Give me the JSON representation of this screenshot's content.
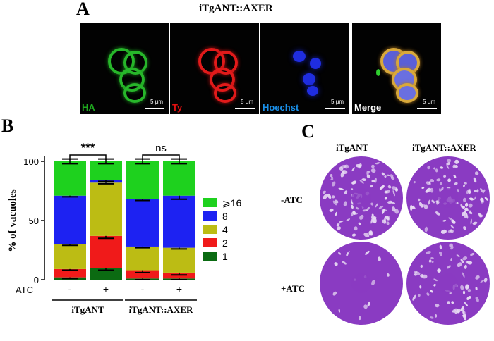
{
  "panel_a": {
    "letter": "A",
    "title": "iTgANT::AXER",
    "channels": [
      {
        "label": "HA",
        "label_color": "#1fa81f",
        "scale": "5 μm"
      },
      {
        "label": "Ty",
        "label_color": "#e01010",
        "scale": "5 μm"
      },
      {
        "label": "Hoechst",
        "label_color": "#1a8fe8",
        "scale": "5 μm"
      },
      {
        "label": "Merge",
        "label_color": "#ffffff",
        "scale": "5 μm"
      }
    ]
  },
  "panel_b": {
    "letter": "B",
    "chart_data": {
      "type": "bar",
      "stacked": true,
      "ylabel": "% of  vacuoles",
      "ylim": [
        0,
        100
      ],
      "yticks": [
        0,
        50,
        100
      ],
      "x_row_label": "ATC",
      "categories": [
        "-",
        "+",
        "-",
        "+"
      ],
      "groups": [
        {
          "label": "iTgANT",
          "categories": [
            0,
            1
          ]
        },
        {
          "label": "iTgANT::AXER",
          "categories": [
            2,
            3
          ]
        }
      ],
      "series": [
        {
          "name": "1",
          "color": "#0b6b12",
          "values": [
            2,
            10,
            1,
            1
          ],
          "errors": [
            1,
            2,
            1,
            1
          ]
        },
        {
          "name": "2",
          "color": "#f01a1a",
          "values": [
            7,
            27,
            7,
            5
          ],
          "errors": [
            1,
            2,
            2,
            2
          ]
        },
        {
          "name": "4",
          "color": "#bcbc14",
          "values": [
            21,
            45,
            20,
            21
          ],
          "errors": [
            1,
            1,
            1,
            1
          ]
        },
        {
          "name": "8",
          "color": "#1d22f2",
          "values": [
            41,
            2,
            40,
            44
          ],
          "errors": [
            1,
            1,
            1,
            3
          ]
        },
        {
          "name": "⩾16",
          "color": "#1ed11e",
          "values": [
            29,
            16,
            32,
            29
          ],
          "errors": [
            2,
            2,
            2,
            2
          ]
        }
      ],
      "legend": [
        "⩾16",
        "8",
        "4",
        "2",
        "1"
      ],
      "legend_position": "right",
      "significance": [
        {
          "text": "***",
          "between": [
            0,
            1
          ]
        },
        {
          "text": "ns",
          "between": [
            2,
            3
          ]
        }
      ]
    }
  },
  "panel_c": {
    "letter": "C",
    "columns": [
      "iTgANT",
      "iTgANT::AXER"
    ],
    "rows": [
      "-ATC",
      "+ATC"
    ]
  },
  "colors": {
    "plate_purple": "#8a3bc2",
    "plate_light": "#e8dcf3"
  }
}
